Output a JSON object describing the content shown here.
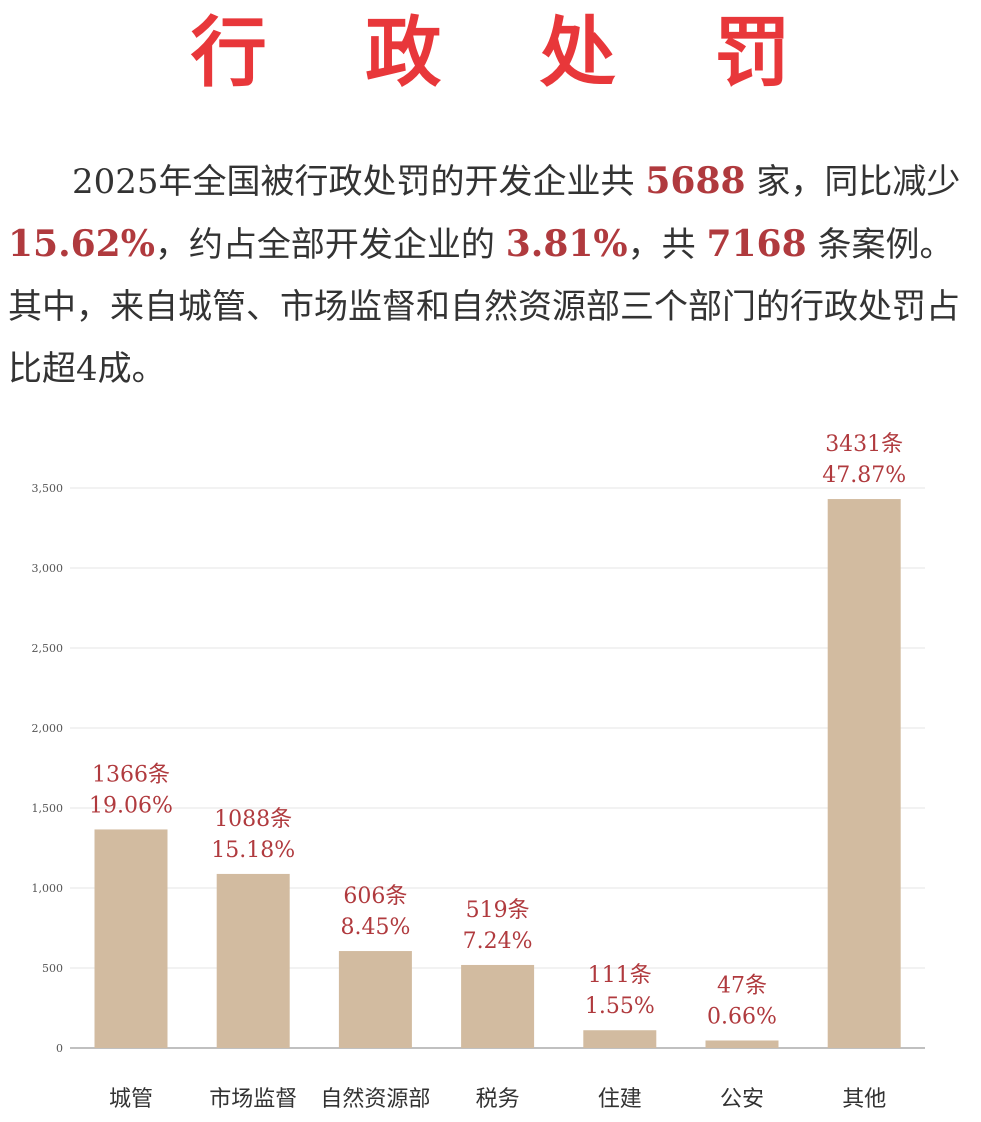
{
  "title": "行 政 处 罚",
  "paragraph": {
    "t1": "2025年全国被行政处罚的开发企业共",
    "n1": "5688",
    "t2": "家，同比减少",
    "n2": "15.62%",
    "t3": "，约占全部开发企业的",
    "n3": "3.81%",
    "t4": "，共",
    "n4": "7168",
    "t5": "条案例。其中，来自城管、市场监督和自然资源部三个部门的行政处罚占比超4成。"
  },
  "colors": {
    "title": "#e8373a",
    "highlight": "#b03a3e",
    "bar": "#d2bba0",
    "label": "#b03a3e"
  },
  "chart_data": {
    "type": "bar",
    "categories": [
      "城管",
      "市场监督",
      "自然资源部",
      "税务",
      "住建",
      "公安",
      "其他"
    ],
    "values": [
      1366,
      1088,
      606,
      519,
      111,
      47,
      3431
    ],
    "data_labels": [
      [
        "1366条",
        "19.06%"
      ],
      [
        "1088条",
        "15.18%"
      ],
      [
        "606条",
        "8.45%"
      ],
      [
        "519条",
        "7.24%"
      ],
      [
        "111条",
        "1.55%"
      ],
      [
        "47条",
        "0.66%"
      ],
      [
        "3431条",
        "47.87%"
      ]
    ],
    "y_ticks": [
      0,
      500,
      1000,
      1500,
      2000,
      2500,
      3000,
      3500
    ],
    "y_tick_labels": [
      "0",
      "500",
      "1,000",
      "1,500",
      "2,000",
      "2,500",
      "3,000",
      "3,500"
    ],
    "ylim": [
      0,
      3500
    ],
    "grid": true
  }
}
